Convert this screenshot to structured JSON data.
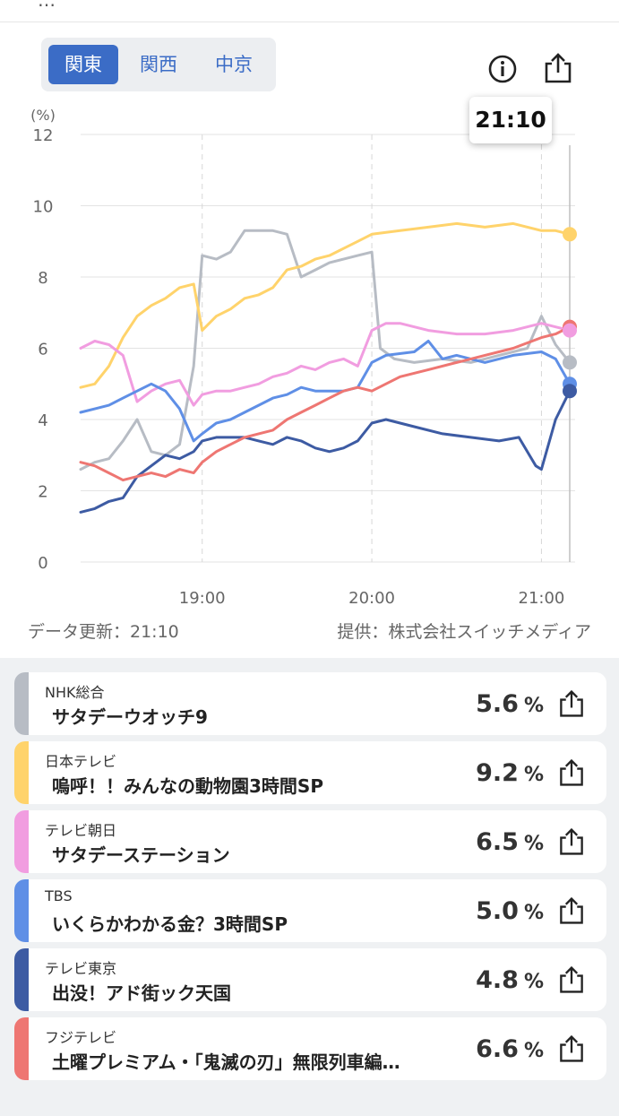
{
  "header": {
    "cut_off_text": "…"
  },
  "region_tabs": [
    {
      "label": "関東",
      "active": true
    },
    {
      "label": "関西",
      "active": false
    },
    {
      "label": "中京",
      "active": false
    }
  ],
  "icons": {
    "info": "info-icon",
    "share": "share-icon"
  },
  "tooltip_time": "21:10",
  "chart_data": {
    "type": "line",
    "ylabel": "(%)",
    "ylim": [
      0,
      12
    ],
    "yticks": [
      "0",
      "2",
      "4",
      "6",
      "8",
      "10",
      "12"
    ],
    "xticks": [
      "19:00",
      "20:00",
      "21:00"
    ],
    "xrange": [
      "18:17",
      "21:10"
    ],
    "grid": true,
    "series": [
      {
        "name": "NHK総合",
        "color": "#b7bcc4",
        "x": [
          "18:17",
          "18:22",
          "18:27",
          "18:32",
          "18:37",
          "18:42",
          "18:47",
          "18:52",
          "18:57",
          "19:00",
          "19:05",
          "19:10",
          "19:15",
          "19:20",
          "19:25",
          "19:30",
          "19:35",
          "19:40",
          "19:45",
          "19:50",
          "19:55",
          "20:00",
          "20:03",
          "20:08",
          "20:15",
          "20:25",
          "20:35",
          "20:45",
          "20:55",
          "21:00",
          "21:05",
          "21:10"
        ],
        "y": [
          2.6,
          2.8,
          2.9,
          3.4,
          4.0,
          3.1,
          3.0,
          3.3,
          5.5,
          8.6,
          8.5,
          8.7,
          9.3,
          9.3,
          9.3,
          9.2,
          8.0,
          8.2,
          8.4,
          8.5,
          8.6,
          8.7,
          6.0,
          5.7,
          5.6,
          5.7,
          5.6,
          5.8,
          6.0,
          6.9,
          6.1,
          5.6
        ]
      },
      {
        "name": "日本テレビ",
        "color": "#ffd36b",
        "x": [
          "18:17",
          "18:22",
          "18:27",
          "18:32",
          "18:37",
          "18:42",
          "18:47",
          "18:52",
          "18:57",
          "19:00",
          "19:05",
          "19:10",
          "19:15",
          "19:20",
          "19:25",
          "19:30",
          "19:35",
          "19:40",
          "19:45",
          "19:50",
          "19:55",
          "20:00",
          "20:10",
          "20:20",
          "20:30",
          "20:40",
          "20:50",
          "21:00",
          "21:05",
          "21:10"
        ],
        "y": [
          4.9,
          5.0,
          5.5,
          6.3,
          6.9,
          7.2,
          7.4,
          7.7,
          7.8,
          6.5,
          6.9,
          7.1,
          7.4,
          7.5,
          7.7,
          8.2,
          8.3,
          8.5,
          8.6,
          8.8,
          9.0,
          9.2,
          9.3,
          9.4,
          9.5,
          9.4,
          9.5,
          9.3,
          9.3,
          9.2
        ]
      },
      {
        "name": "テレビ朝日",
        "color": "#f19de0",
        "x": [
          "18:17",
          "18:22",
          "18:27",
          "18:32",
          "18:37",
          "18:42",
          "18:47",
          "18:52",
          "18:57",
          "19:00",
          "19:05",
          "19:10",
          "19:15",
          "19:20",
          "19:25",
          "19:30",
          "19:35",
          "19:40",
          "19:45",
          "19:50",
          "19:55",
          "20:00",
          "20:05",
          "20:10",
          "20:20",
          "20:30",
          "20:40",
          "20:50",
          "21:00",
          "21:05",
          "21:10"
        ],
        "y": [
          6.0,
          6.2,
          6.1,
          5.8,
          4.5,
          4.8,
          5.0,
          5.1,
          4.4,
          4.7,
          4.8,
          4.8,
          4.9,
          5.0,
          5.2,
          5.3,
          5.5,
          5.4,
          5.6,
          5.7,
          5.5,
          6.5,
          6.7,
          6.7,
          6.5,
          6.4,
          6.4,
          6.5,
          6.7,
          6.6,
          6.5
        ]
      },
      {
        "name": "TBS",
        "color": "#5f8fe6",
        "x": [
          "18:17",
          "18:22",
          "18:27",
          "18:32",
          "18:37",
          "18:42",
          "18:47",
          "18:52",
          "18:57",
          "19:00",
          "19:05",
          "19:10",
          "19:15",
          "19:20",
          "19:25",
          "19:30",
          "19:35",
          "19:40",
          "19:45",
          "19:50",
          "19:55",
          "20:00",
          "20:05",
          "20:15",
          "20:20",
          "20:25",
          "20:30",
          "20:40",
          "20:50",
          "21:00",
          "21:05",
          "21:10"
        ],
        "y": [
          4.2,
          4.3,
          4.4,
          4.6,
          4.8,
          5.0,
          4.8,
          4.3,
          3.4,
          3.6,
          3.9,
          4.0,
          4.2,
          4.4,
          4.6,
          4.7,
          4.9,
          4.8,
          4.8,
          4.8,
          4.9,
          5.6,
          5.8,
          5.9,
          6.2,
          5.7,
          5.8,
          5.6,
          5.8,
          5.9,
          5.7,
          5.0
        ]
      },
      {
        "name": "テレビ東京",
        "color": "#3d5ba3",
        "x": [
          "18:17",
          "18:22",
          "18:27",
          "18:32",
          "18:37",
          "18:42",
          "18:47",
          "18:52",
          "18:57",
          "19:00",
          "19:05",
          "19:10",
          "19:15",
          "19:20",
          "19:25",
          "19:30",
          "19:35",
          "19:40",
          "19:45",
          "19:50",
          "19:55",
          "20:00",
          "20:05",
          "20:15",
          "20:25",
          "20:35",
          "20:45",
          "20:52",
          "20:58",
          "21:00",
          "21:05",
          "21:10"
        ],
        "y": [
          1.4,
          1.5,
          1.7,
          1.8,
          2.4,
          2.7,
          3.0,
          2.9,
          3.1,
          3.4,
          3.5,
          3.5,
          3.5,
          3.4,
          3.3,
          3.5,
          3.4,
          3.2,
          3.1,
          3.2,
          3.4,
          3.9,
          4.0,
          3.8,
          3.6,
          3.5,
          3.4,
          3.5,
          2.7,
          2.6,
          4.0,
          4.8
        ]
      },
      {
        "name": "フジテレビ",
        "color": "#ee7672",
        "x": [
          "18:17",
          "18:22",
          "18:27",
          "18:32",
          "18:37",
          "18:42",
          "18:47",
          "18:52",
          "18:57",
          "19:00",
          "19:05",
          "19:10",
          "19:15",
          "19:20",
          "19:25",
          "19:30",
          "19:35",
          "19:40",
          "19:45",
          "19:50",
          "19:55",
          "20:00",
          "20:10",
          "20:20",
          "20:30",
          "20:40",
          "20:50",
          "21:00",
          "21:05",
          "21:10"
        ],
        "y": [
          2.8,
          2.7,
          2.5,
          2.3,
          2.4,
          2.5,
          2.4,
          2.6,
          2.5,
          2.8,
          3.1,
          3.3,
          3.5,
          3.6,
          3.7,
          4.0,
          4.2,
          4.4,
          4.6,
          4.8,
          4.9,
          4.8,
          5.2,
          5.4,
          5.6,
          5.8,
          6.0,
          6.3,
          6.4,
          6.6
        ]
      }
    ],
    "markers": [
      {
        "name": "日本テレビ",
        "y": 9.2,
        "color": "#ffd36b"
      },
      {
        "name": "フジテレビ",
        "y": 6.6,
        "color": "#ee7672"
      },
      {
        "name": "テレビ朝日",
        "y": 6.5,
        "color": "#f19de0"
      },
      {
        "name": "NHK総合",
        "y": 5.6,
        "color": "#b7bcc4"
      },
      {
        "name": "TBS",
        "y": 5.0,
        "color": "#5f8fe6"
      },
      {
        "name": "テレビ東京",
        "y": 4.8,
        "color": "#3d5ba3"
      }
    ]
  },
  "footer": {
    "updated": "データ更新：21:10",
    "provider": "提供：株式会社スイッチメディア"
  },
  "programs": [
    {
      "channel": "NHK総合",
      "title": "サタデーウオッチ9",
      "rating": "5.6",
      "unit": "%",
      "color": "#b7bcc4"
    },
    {
      "channel": "日本テレビ",
      "title": "嗚呼！！みんなの動物園3時間SP",
      "rating": "9.2",
      "unit": "%",
      "color": "#ffd36b"
    },
    {
      "channel": "テレビ朝日",
      "title": "サタデーステーション",
      "rating": "6.5",
      "unit": "%",
      "color": "#f19de0"
    },
    {
      "channel": "TBS",
      "title": "いくらかわかる金？3時間SP",
      "rating": "5.0",
      "unit": "%",
      "color": "#5f8fe6"
    },
    {
      "channel": "テレビ東京",
      "title": "出没！アド街ック天国",
      "rating": "4.8",
      "unit": "%",
      "color": "#3d5ba3"
    },
    {
      "channel": "フジテレビ",
      "title": "土曜プレミアム・「鬼滅の刃」無限列車編…",
      "rating": "6.6",
      "unit": "%",
      "color": "#ee7672"
    }
  ]
}
